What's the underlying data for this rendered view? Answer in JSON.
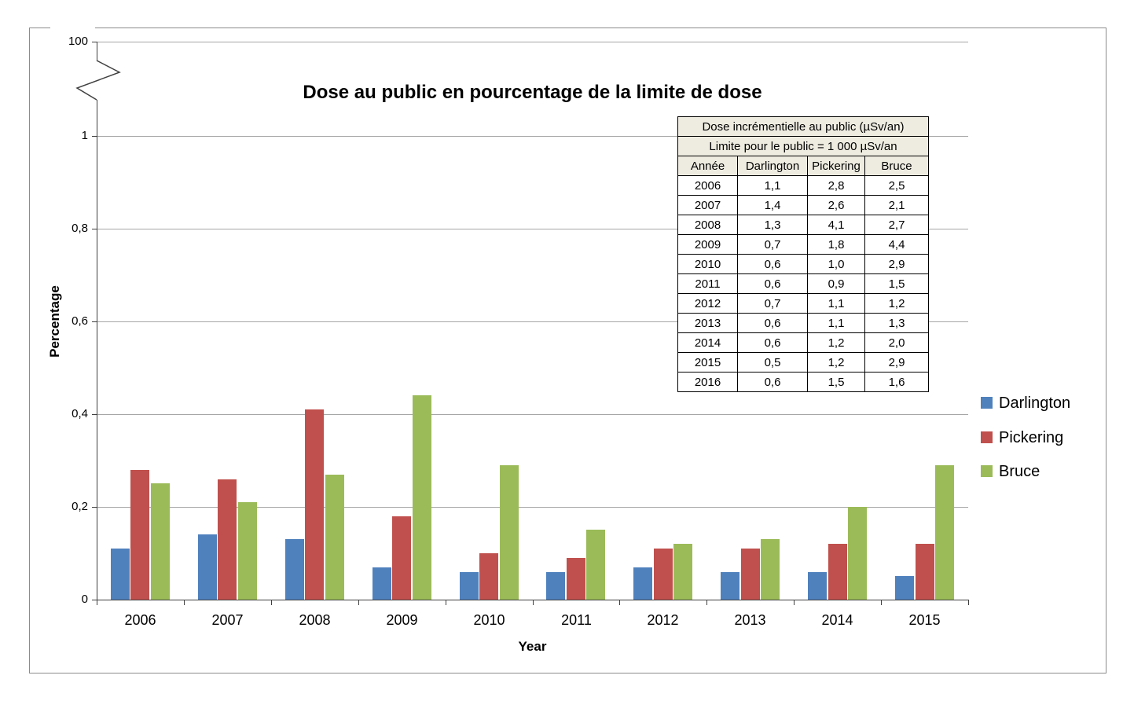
{
  "chart_data": {
    "type": "bar",
    "title": "Dose au public en pourcentage de la limite de dose",
    "xlabel": "Year",
    "ylabel": "Percentage",
    "categories": [
      "2006",
      "2007",
      "2008",
      "2009",
      "2010",
      "2011",
      "2012",
      "2013",
      "2014",
      "2015"
    ],
    "series": [
      {
        "name": "Darlington",
        "color": "#4F81BD",
        "values": [
          0.11,
          0.14,
          0.13,
          0.07,
          0.06,
          0.06,
          0.07,
          0.06,
          0.06,
          0.05
        ]
      },
      {
        "name": "Pickering",
        "color": "#C0504D",
        "values": [
          0.28,
          0.26,
          0.41,
          0.18,
          0.1,
          0.09,
          0.11,
          0.11,
          0.12,
          0.12
        ]
      },
      {
        "name": "Bruce",
        "color": "#9BBB59",
        "values": [
          0.25,
          0.21,
          0.27,
          0.44,
          0.29,
          0.15,
          0.12,
          0.13,
          0.2,
          0.29
        ]
      }
    ],
    "y_ticks": [
      {
        "value": 0,
        "label": "0"
      },
      {
        "value": 0.2,
        "label": "0,2"
      },
      {
        "value": 0.4,
        "label": "0,4"
      },
      {
        "value": 0.6,
        "label": "0,6"
      },
      {
        "value": 0.8,
        "label": "0,8"
      },
      {
        "value": 1,
        "label": "1"
      }
    ],
    "ylim": [
      0,
      1
    ],
    "axis_break": {
      "present": true,
      "top_label": "100"
    },
    "grid": true,
    "legend_position": "right"
  },
  "legend": {
    "items": [
      {
        "label": "Darlington",
        "color": "#4F81BD"
      },
      {
        "label": "Pickering",
        "color": "#C0504D"
      },
      {
        "label": "Bruce",
        "color": "#9BBB59"
      }
    ]
  },
  "table": {
    "title_rows": [
      "Dose incrémentielle au public (µSv/an)",
      "Limite pour le public = 1 000 µSv/an"
    ],
    "columns": [
      "Année",
      "Darlington",
      "Pickering",
      "Bruce"
    ],
    "rows": [
      [
        "2006",
        "1,1",
        "2,8",
        "2,5"
      ],
      [
        "2007",
        "1,4",
        "2,6",
        "2,1"
      ],
      [
        "2008",
        "1,3",
        "4,1",
        "2,7"
      ],
      [
        "2009",
        "0,7",
        "1,8",
        "4,4"
      ],
      [
        "2010",
        "0,6",
        "1,0",
        "2,9"
      ],
      [
        "2011",
        "0,6",
        "0,9",
        "1,5"
      ],
      [
        "2012",
        "0,7",
        "1,1",
        "1,2"
      ],
      [
        "2013",
        "0,6",
        "1,1",
        "1,3"
      ],
      [
        "2014",
        "0,6",
        "1,2",
        "2,0"
      ],
      [
        "2015",
        "0,5",
        "1,2",
        "2,9"
      ],
      [
        "2016",
        "0,6",
        "1,5",
        "1,6"
      ]
    ]
  },
  "style": {
    "gridline_color": "#A6A6A6",
    "axis_color": "#404040",
    "border_color": "#8c8c8c",
    "table_header_bg": "#EEECE1"
  }
}
